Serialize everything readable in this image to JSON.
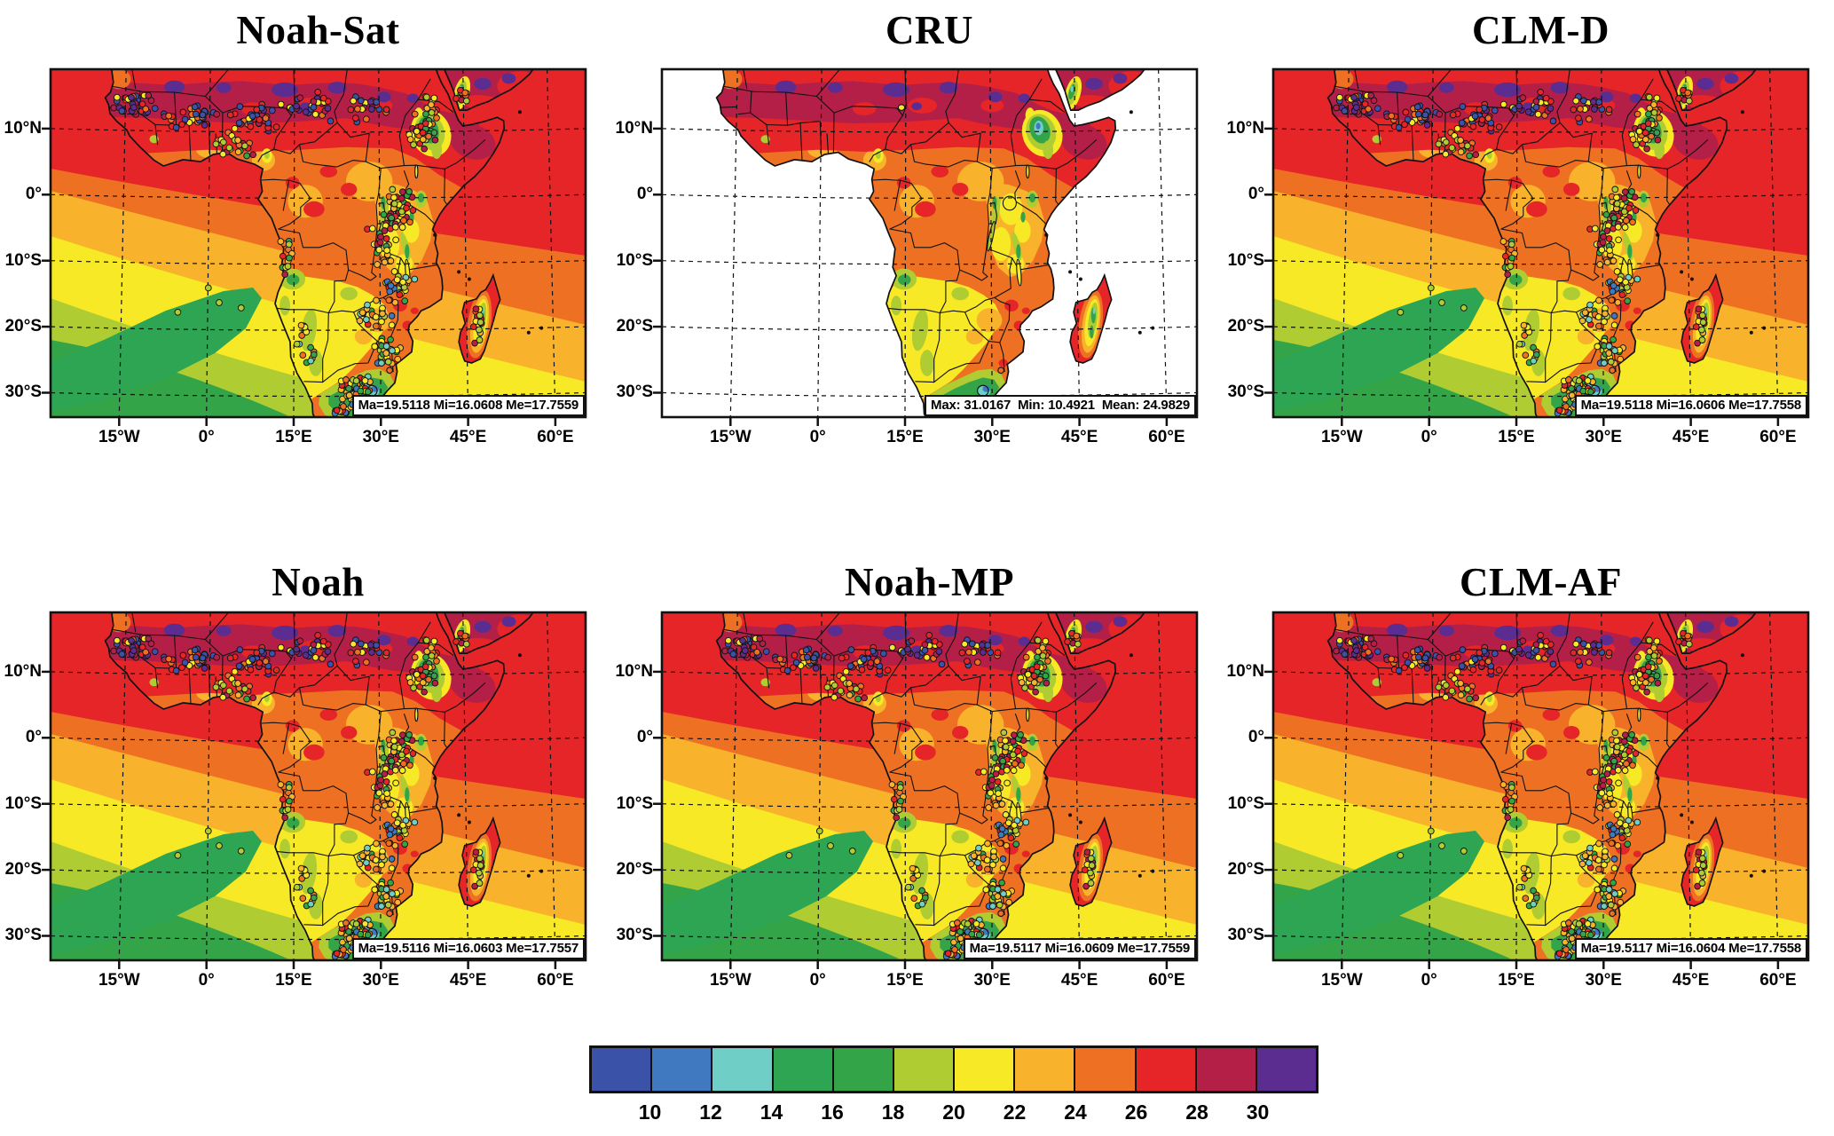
{
  "figure": {
    "panels": [
      {
        "title": "Noah-Sat",
        "stats": "Ma=19.5118 Mi=16.0608 Me=17.7559",
        "ocean": "colored",
        "station_dots": true
      },
      {
        "title": "CRU",
        "stats": "Max: 31.0167  Min: 10.4921  Mean: 24.9829",
        "ocean": "white",
        "station_dots": false
      },
      {
        "title": "CLM-D",
        "stats": "Ma=19.5118 Mi=16.0606 Me=17.7558",
        "ocean": "colored",
        "station_dots": true
      },
      {
        "title": "Noah",
        "stats": "Ma=19.5116 Mi=16.0603 Me=17.7557",
        "ocean": "colored",
        "station_dots": true
      },
      {
        "title": "Noah-MP",
        "stats": "Ma=19.5117 Mi=16.0609 Me=17.7559",
        "ocean": "colored",
        "station_dots": true
      },
      {
        "title": "CLM-AF",
        "stats": "Ma=19.5117 Mi=16.0604 Me=17.7558",
        "ocean": "colored",
        "station_dots": true
      }
    ],
    "axes": {
      "x_tick_labels": [
        "15°W",
        "0°",
        "15°E",
        "30°E",
        "45°E",
        "60°E"
      ],
      "x_tick_lons": [
        -15,
        0,
        15,
        30,
        45,
        60
      ],
      "y_tick_labels": [
        "10°N",
        "0°",
        "10°S",
        "20°S",
        "30°S"
      ],
      "y_tick_lats": [
        10,
        0,
        -10,
        -20,
        -30
      ]
    },
    "colorbar": {
      "tick_labels": [
        "10",
        "12",
        "14",
        "16",
        "18",
        "20",
        "22",
        "24",
        "26",
        "28",
        "30"
      ],
      "colors": [
        "#3a53a9",
        "#4179c1",
        "#6fcfc6",
        "#2ea553",
        "#33a447",
        "#b0cc33",
        "#f7e926",
        "#f9b22b",
        "#ee7123",
        "#e62528",
        "#b41f47",
        "#5c2d90"
      ]
    }
  },
  "chart_data": {
    "type": "heatmap",
    "subtype": "filled-contour-geographic-maps",
    "region": "Africa",
    "panel_grid": [
      2,
      3
    ],
    "panels": [
      {
        "name": "Noah-Sat",
        "max": 19.5118,
        "min": 16.0608,
        "mean": 17.7559,
        "stat_label_style": "Ma/Mi/Me"
      },
      {
        "name": "CRU",
        "max": 31.0167,
        "min": 10.4921,
        "mean": 24.9829,
        "stat_label_style": "Max/Min/Mean"
      },
      {
        "name": "CLM-D",
        "max": 19.5118,
        "min": 16.0606,
        "mean": 17.7558,
        "stat_label_style": "Ma/Mi/Me"
      },
      {
        "name": "Noah",
        "max": 19.5116,
        "min": 16.0603,
        "mean": 17.7557,
        "stat_label_style": "Ma/Mi/Me"
      },
      {
        "name": "Noah-MP",
        "max": 19.5117,
        "min": 16.0609,
        "mean": 17.7559,
        "stat_label_style": "Ma/Mi/Me"
      },
      {
        "name": "CLM-AF",
        "max": 19.5117,
        "min": 16.0604,
        "mean": 17.7558,
        "stat_label_style": "Ma/Mi/Me"
      }
    ],
    "colorbar_ticks": [
      10,
      12,
      14,
      16,
      18,
      20,
      22,
      24,
      26,
      28,
      30
    ],
    "colorbar_colors": [
      "#3a53a9",
      "#4179c1",
      "#6fcfc6",
      "#2ea553",
      "#33a447",
      "#b0cc33",
      "#f7e926",
      "#f9b22b",
      "#ee7123",
      "#e62528",
      "#b41f47",
      "#5c2d90"
    ],
    "x_ticks_deg": [
      -15,
      0,
      15,
      30,
      45,
      60
    ],
    "y_ticks_deg": [
      10,
      0,
      -10,
      -20,
      -30
    ],
    "grid": "dashed",
    "legend_position": "bottom-center"
  }
}
